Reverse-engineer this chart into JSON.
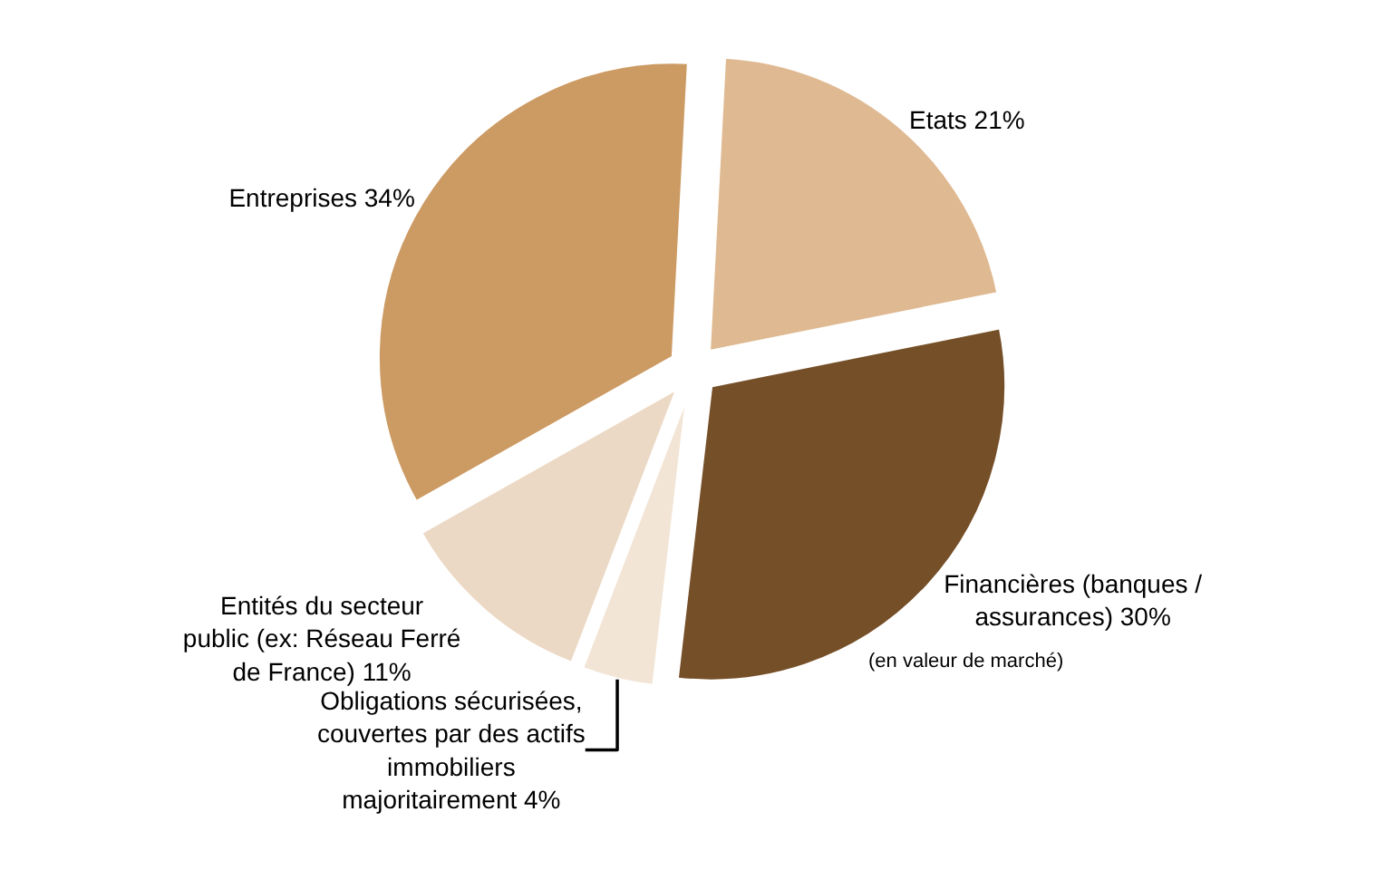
{
  "chart_data": {
    "type": "pie",
    "categories": [
      "Etats",
      "Financières (banques / assurances)",
      "Obligations sécurisées, couvertes par des actifs immobiliers majoritairement",
      "Entités du secteur public (ex: Réseau Ferré de France)",
      "Entreprises"
    ],
    "values": [
      21,
      30,
      4,
      11,
      34
    ],
    "value_labels": [
      "21%",
      "30%",
      "4%",
      "11%",
      "34%"
    ],
    "colors": [
      "#dfb991",
      "#754f28",
      "#f3e5d6",
      "#ecd9c5",
      "#cc9a63"
    ],
    "annotations": [
      "(en valeur de marché)"
    ],
    "legend": false
  }
}
